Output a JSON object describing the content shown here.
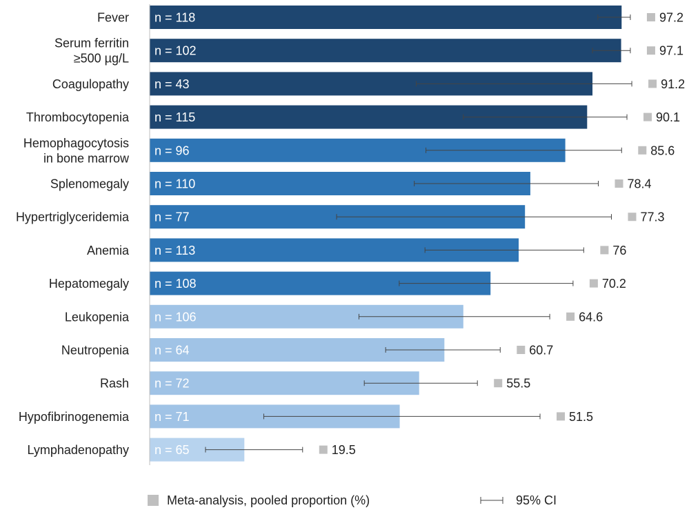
{
  "chart_data": {
    "type": "bar",
    "orientation": "horizontal",
    "xlim": [
      0,
      100
    ],
    "categories": [
      [
        "Fever"
      ],
      [
        "Serum ferritin",
        "≥500 µg/L"
      ],
      [
        "Coagulopathy"
      ],
      [
        "Thrombocytopenia"
      ],
      [
        "Hemophagocytosis",
        "in bone marrow"
      ],
      [
        "Splenomegaly"
      ],
      [
        "Hypertriglyceridemia"
      ],
      [
        "Anemia"
      ],
      [
        "Hepatomegaly"
      ],
      [
        "Leukopenia"
      ],
      [
        "Neutropenia"
      ],
      [
        "Rash"
      ],
      [
        "Hypofibrinogenemia"
      ],
      [
        "Lymphadenopathy"
      ]
    ],
    "n_labels": [
      "n = 118",
      "n = 102",
      "n = 43",
      "n = 115",
      "n = 96",
      "n = 110",
      "n = 77",
      "n = 113",
      "n = 108",
      "n = 106",
      "n = 64",
      "n = 72",
      "n = 71",
      "n = 65"
    ],
    "values": [
      97.2,
      97.1,
      91.2,
      90.1,
      85.6,
      78.4,
      77.3,
      76,
      70.2,
      64.6,
      60.7,
      55.5,
      51.5,
      19.5
    ],
    "ci_lower": [
      92.3,
      91.2,
      54.9,
      64.6,
      56.9,
      54.5,
      38.5,
      56.7,
      51.4,
      43.1,
      48.6,
      44.2,
      23.5,
      11.5
    ],
    "ci_upper": [
      99.0,
      99.0,
      99.3,
      98.3,
      97.2,
      92.4,
      95.1,
      89.4,
      87.2,
      82.4,
      72.2,
      67.5,
      80.4,
      31.5
    ],
    "bar_colors": [
      "#1e4670",
      "#1e4670",
      "#1e4670",
      "#1e4670",
      "#2e75b5",
      "#2e75b5",
      "#2e75b5",
      "#2e75b5",
      "#2e75b5",
      "#a0c3e6",
      "#a0c3e6",
      "#a0c3e6",
      "#a0c3e6",
      "#b7d3ee"
    ],
    "marker_color": "#bfbfbf",
    "axis_color": "#bfbfbf",
    "legend": {
      "pooled_label": "Meta-analysis, pooled proportion (%)",
      "ci_label": "95% CI",
      "position": "bottom"
    }
  }
}
